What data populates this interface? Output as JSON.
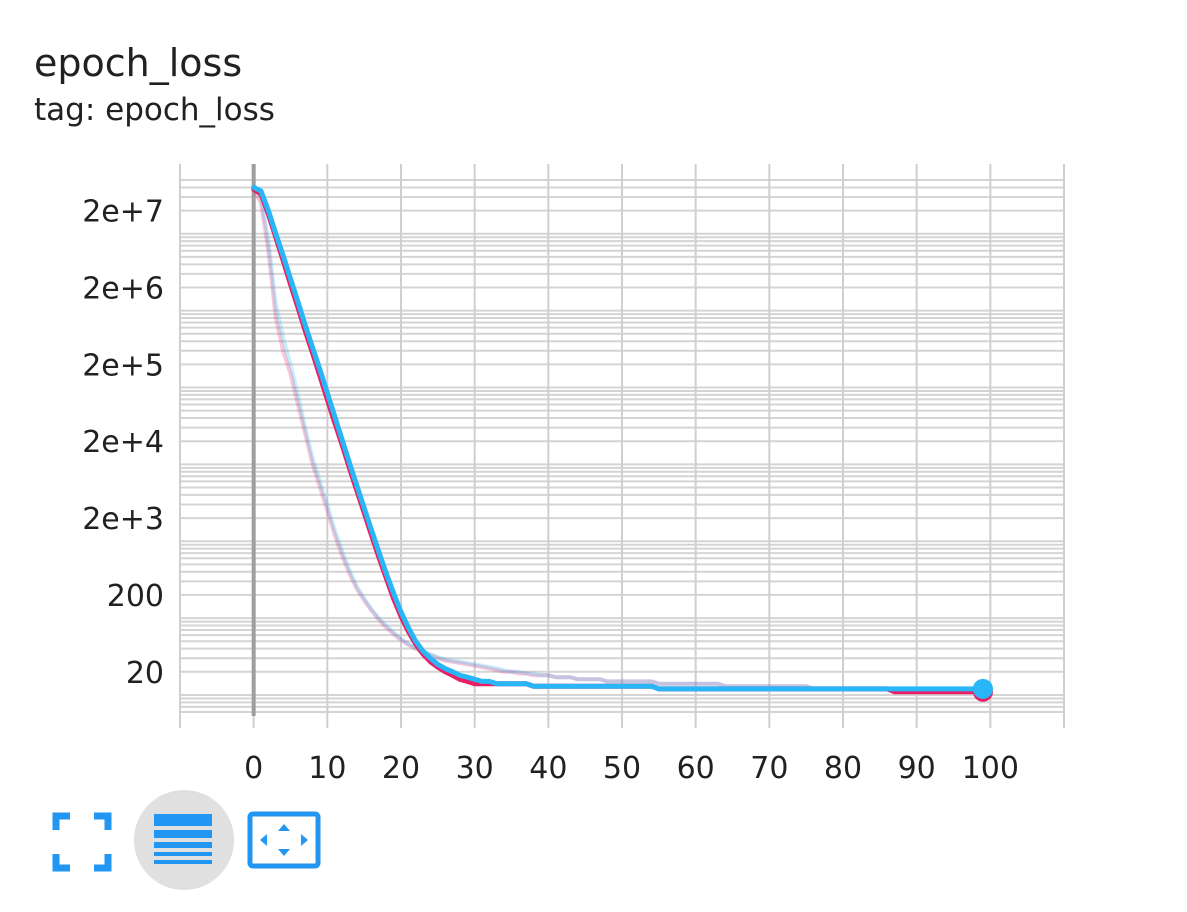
{
  "card": {
    "title": "epoch_loss",
    "subtitle": "tag: epoch_loss"
  },
  "toolbar": {
    "buttons": [
      {
        "name": "fullscreen",
        "icon": "fullscreen-icon"
      },
      {
        "name": "log-scale-toggle",
        "icon": "list-lines-icon",
        "active": true
      },
      {
        "name": "fit-domain",
        "icon": "fit-to-screen-icon"
      }
    ],
    "icon_color": "#2196f3"
  },
  "chart_data": {
    "type": "line",
    "title": "epoch_loss",
    "subtitle": "tag: epoch_loss",
    "xlabel": "",
    "ylabel": "",
    "x_scale": "linear",
    "y_scale": "log",
    "xlim": [
      -10,
      110
    ],
    "ylim": [
      6,
      50000000
    ],
    "grid": true,
    "x_ticks": [
      0,
      10,
      20,
      30,
      40,
      50,
      60,
      70,
      80,
      90,
      100
    ],
    "x_tick_labels": [
      "0",
      "10",
      "20",
      "30",
      "40",
      "50",
      "60",
      "70",
      "80",
      "90",
      "100"
    ],
    "y_ticks": [
      20,
      200,
      2000,
      20000,
      200000,
      2000000,
      20000000
    ],
    "y_tick_labels": [
      "20",
      "200",
      "2e+3",
      "2e+4",
      "2e+5",
      "2e+6",
      "2e+7"
    ],
    "series": [
      {
        "color": "#e91e63",
        "raw_opacity": 0.25,
        "x": [
          0,
          1,
          2,
          3,
          4,
          5,
          6,
          7,
          8,
          9,
          10,
          11,
          12,
          13,
          14,
          15,
          16,
          17,
          18,
          19,
          20,
          21,
          22,
          23,
          24,
          25,
          26,
          27,
          28,
          29,
          30,
          31,
          32,
          33,
          34,
          35,
          36,
          37,
          38,
          39,
          40,
          41,
          42,
          43,
          44,
          45,
          46,
          47,
          48,
          49,
          50,
          51,
          52,
          53,
          54,
          55,
          56,
          57,
          58,
          59,
          60,
          61,
          62,
          63,
          64,
          65,
          66,
          67,
          68,
          69,
          70,
          71,
          72,
          73,
          74,
          75,
          76,
          77,
          78,
          79,
          80,
          81,
          82,
          83,
          84,
          85,
          86,
          87,
          88,
          89,
          90,
          91,
          92,
          93,
          94,
          95,
          96,
          97,
          98,
          99
        ],
        "smoothed": [
          38000000,
          33000000,
          18000000,
          9000000,
          4500000,
          2200000,
          1100000,
          550000,
          280000,
          140000,
          70000,
          35000,
          18000,
          9000,
          4600,
          2350,
          1200,
          620,
          330,
          180,
          105,
          67,
          46,
          34,
          27,
          23,
          20,
          18,
          16,
          15,
          14,
          14,
          14,
          14,
          14,
          14,
          14,
          14,
          13,
          13,
          13,
          13,
          13,
          13,
          13,
          13,
          13,
          13,
          13,
          13,
          13,
          13,
          13,
          13,
          13,
          12,
          12,
          12,
          12,
          12,
          12,
          12,
          12,
          12,
          12,
          12,
          12,
          12,
          12,
          12,
          12,
          12,
          12,
          12,
          12,
          12,
          12,
          12,
          12,
          12,
          12,
          12,
          12,
          12,
          12,
          12,
          12,
          11,
          11,
          11,
          11,
          11,
          11,
          11,
          11,
          11,
          11,
          11,
          11,
          11
        ],
        "values": [
          38000000,
          25000000,
          6000000,
          800000,
          300000,
          150000,
          60000,
          25000,
          10000,
          5000,
          2500,
          1200,
          650,
          380,
          240,
          170,
          125,
          95,
          75,
          62,
          52,
          45,
          40,
          36,
          33,
          30,
          28,
          27,
          26,
          25,
          24,
          23,
          22,
          21,
          20,
          20,
          19,
          19,
          18,
          18,
          18,
          17,
          17,
          17,
          16,
          16,
          16,
          16,
          15,
          15,
          15,
          15,
          15,
          15,
          15,
          14,
          14,
          14,
          14,
          14,
          14,
          14,
          14,
          14,
          13,
          13,
          13,
          13,
          13,
          13,
          13,
          13,
          13,
          13,
          13,
          13,
          12,
          12,
          12,
          12,
          12,
          12,
          12,
          12,
          12,
          12,
          12,
          12,
          12,
          12,
          12,
          12,
          12,
          12,
          12,
          12,
          12,
          12,
          12,
          12
        ]
      },
      {
        "color": "#29b6f6",
        "raw_opacity": 0.25,
        "x": [
          0,
          1,
          2,
          3,
          4,
          5,
          6,
          7,
          8,
          9,
          10,
          11,
          12,
          13,
          14,
          15,
          16,
          17,
          18,
          19,
          20,
          21,
          22,
          23,
          24,
          25,
          26,
          27,
          28,
          29,
          30,
          31,
          32,
          33,
          34,
          35,
          36,
          37,
          38,
          39,
          40,
          41,
          42,
          43,
          44,
          45,
          46,
          47,
          48,
          49,
          50,
          51,
          52,
          53,
          54,
          55,
          56,
          57,
          58,
          59,
          60,
          61,
          62,
          63,
          64,
          65,
          66,
          67,
          68,
          69,
          70,
          71,
          72,
          73,
          74,
          75,
          76,
          77,
          78,
          79,
          80,
          81,
          82,
          83,
          84,
          85,
          86,
          87,
          88,
          89,
          90,
          91,
          92,
          93,
          94,
          95,
          96,
          97,
          98,
          99
        ],
        "smoothed": [
          40000000,
          36000000,
          20000000,
          10000000,
          5200000,
          2600000,
          1300000,
          650000,
          330000,
          170000,
          85000,
          42000,
          21000,
          10500,
          5300,
          2700,
          1400,
          720,
          380,
          210,
          120,
          75,
          50,
          37,
          30,
          25,
          22,
          20,
          18,
          17,
          16,
          15,
          15,
          14,
          14,
          14,
          14,
          14,
          13,
          13,
          13,
          13,
          13,
          13,
          13,
          13,
          13,
          13,
          13,
          13,
          13,
          13,
          13,
          13,
          13,
          12,
          12,
          12,
          12,
          12,
          12,
          12,
          12,
          12,
          12,
          12,
          12,
          12,
          12,
          12,
          12,
          12,
          12,
          12,
          12,
          12,
          12,
          12,
          12,
          12,
          12,
          12,
          12,
          12,
          12,
          12,
          12,
          12,
          12,
          12,
          12,
          12,
          12,
          12,
          12,
          12,
          12,
          12,
          12,
          12
        ],
        "values": [
          40000000,
          30000000,
          8000000,
          1200000,
          450000,
          200000,
          80000,
          30000,
          12000,
          6000,
          3000,
          1400,
          750,
          420,
          260,
          180,
          130,
          100,
          80,
          65,
          54,
          46,
          41,
          37,
          34,
          31,
          29,
          28,
          27,
          26,
          25,
          24,
          23,
          22,
          21,
          20,
          20,
          19,
          19,
          18,
          18,
          17,
          17,
          17,
          16,
          16,
          16,
          16,
          15,
          15,
          15,
          15,
          15,
          15,
          15,
          14,
          14,
          14,
          14,
          14,
          14,
          14,
          14,
          14,
          13,
          13,
          13,
          13,
          13,
          13,
          13,
          13,
          13,
          13,
          13,
          13,
          12,
          12,
          12,
          12,
          12,
          12,
          12,
          12,
          12,
          12,
          12,
          12,
          12,
          12,
          12,
          12,
          12,
          12,
          12,
          12,
          12,
          12,
          12,
          12
        ]
      }
    ]
  }
}
